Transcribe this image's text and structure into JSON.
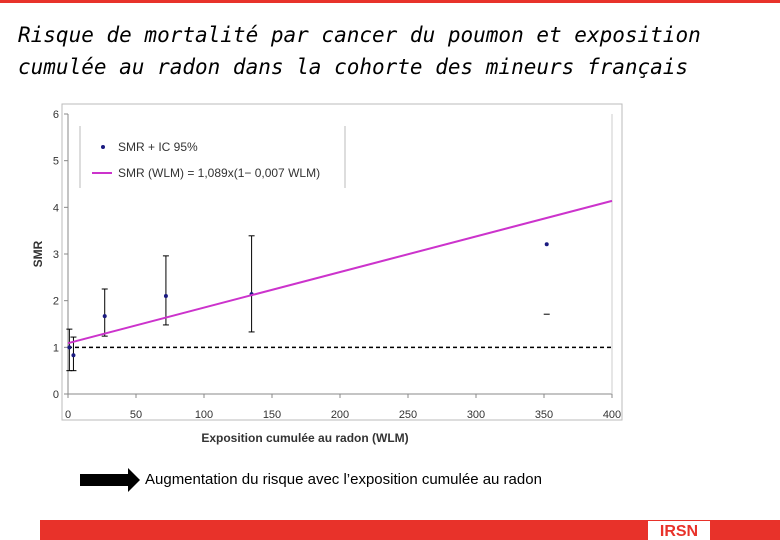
{
  "title": [
    "Risque de mortalité par cancer du poumon et exposition",
    "cumulée au radon dans la cohorte des mineurs français"
  ],
  "chart_data": {
    "type": "scatter",
    "xlabel": "Exposition cumulée au radon (WLM)",
    "ylabel": "SMR",
    "xlim": [
      0,
      400
    ],
    "xticks": [
      0,
      50,
      100,
      150,
      200,
      250,
      300,
      350,
      400
    ],
    "ylim": [
      0,
      6
    ],
    "yticks": [
      0,
      1,
      2,
      3,
      4,
      5,
      6
    ],
    "reference_line": 1,
    "series": [
      {
        "name": "SMR + IC 95%",
        "type": "scatter",
        "color": "#1a1a80",
        "x": [
          1,
          4,
          27,
          72,
          135,
          352
        ],
        "values": [
          1.0,
          0.83,
          1.67,
          2.1,
          2.14,
          3.21
        ],
        "lower": [
          0.5,
          0.5,
          1.24,
          1.48,
          1.33,
          1.71
        ],
        "upper": [
          1.39,
          1.22,
          2.25,
          2.96,
          3.39,
          null
        ]
      },
      {
        "name": "SMR (WLM) = 1,089x(1− 0,007 WLM)",
        "type": "line",
        "color": "#cc33cc",
        "x": [
          0,
          400
        ],
        "values": [
          1.089,
          4.138
        ]
      }
    ]
  },
  "note": "Augmentation du risque avec l’exposition cumulée au radon",
  "logo": "IRSN"
}
